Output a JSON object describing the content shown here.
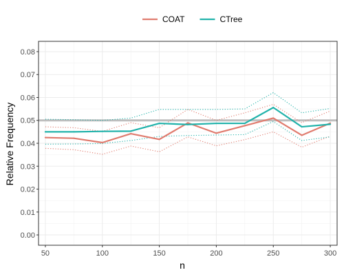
{
  "chart_data": {
    "type": "line",
    "xlabel": "n",
    "ylabel": "Relative Frequency",
    "xlim": [
      44,
      306
    ],
    "ylim": [
      -0.0045,
      0.0845
    ],
    "x_ticks": [
      50,
      100,
      150,
      200,
      250,
      300
    ],
    "x_tick_labels": [
      "50",
      "100",
      "150",
      "200",
      "250",
      "300"
    ],
    "y_ticks": [
      0,
      0.01,
      0.02,
      0.03,
      0.04,
      0.05,
      0.06,
      0.07,
      0.08
    ],
    "y_tick_labels": [
      "0.00",
      "0.01",
      "0.02",
      "0.03",
      "0.04",
      "0.05",
      "0.06",
      "0.07",
      "0.08"
    ],
    "grid": true,
    "legend_position": "top",
    "reference_line": {
      "y": 0.05,
      "color": "#bebebe"
    },
    "x": [
      50,
      75,
      100,
      125,
      150,
      175,
      200,
      225,
      250,
      275,
      300
    ],
    "series": [
      {
        "name": "COAT",
        "color": "#E07B6E",
        "values": [
          0.0425,
          0.0422,
          0.0403,
          0.0442,
          0.0417,
          0.0489,
          0.0444,
          0.0477,
          0.051,
          0.0435,
          0.0488
        ],
        "lower": [
          0.0378,
          0.0372,
          0.0352,
          0.0388,
          0.0363,
          0.0428,
          0.0389,
          0.0416,
          0.045,
          0.0383,
          0.0431
        ],
        "upper": [
          0.0472,
          0.0468,
          0.0452,
          0.049,
          0.0468,
          0.0548,
          0.05,
          0.0533,
          0.057,
          0.049,
          0.0541
        ]
      },
      {
        "name": "CTree",
        "color": "#20B2AA",
        "values": [
          0.045,
          0.045,
          0.0452,
          0.0453,
          0.0487,
          0.0482,
          0.0487,
          0.0487,
          0.0556,
          0.0472,
          0.0483
        ],
        "lower": [
          0.0396,
          0.0397,
          0.0399,
          0.0412,
          0.043,
          0.0434,
          0.0436,
          0.0438,
          0.0495,
          0.0412,
          0.0428
        ],
        "upper": [
          0.0505,
          0.0503,
          0.05,
          0.051,
          0.0548,
          0.0548,
          0.0548,
          0.055,
          0.0621,
          0.0533,
          0.0552
        ]
      }
    ]
  }
}
